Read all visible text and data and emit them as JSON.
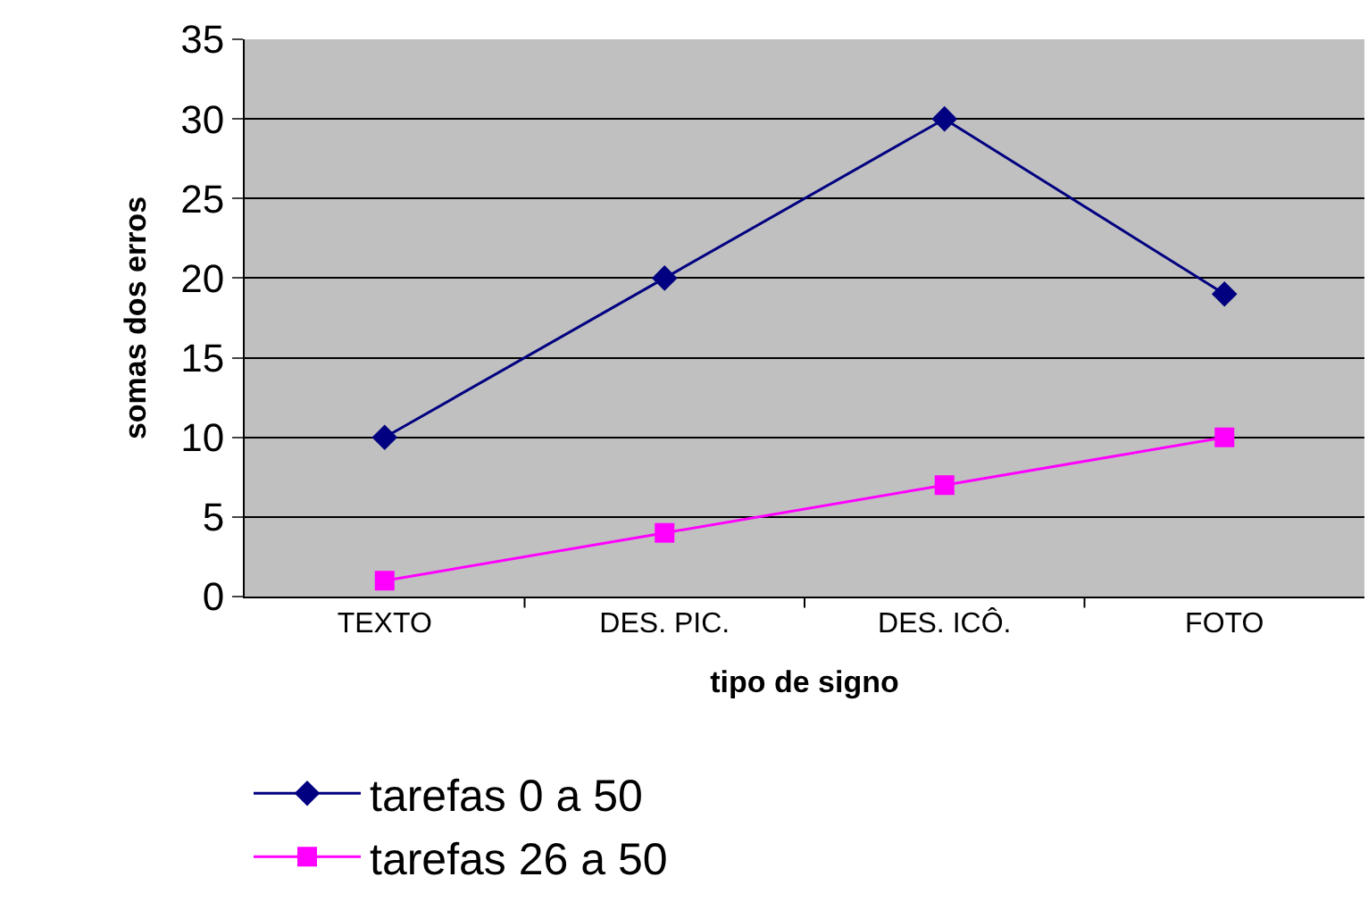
{
  "chart_data": {
    "type": "line",
    "xlabel": "tipo de signo",
    "ylabel": "somas dos erros",
    "categories": [
      "TEXTO",
      "DES. PIC.",
      "DES. ICÔ.",
      "FOTO"
    ],
    "series": [
      {
        "name": "tarefas 0 a 50",
        "color": "#000080",
        "values": [
          10,
          20,
          30,
          19
        ],
        "marker": "diamond"
      },
      {
        "name": "tarefas 26 a 50",
        "color": "#ff00ff",
        "values": [
          1,
          4,
          7,
          10
        ],
        "marker": "square"
      }
    ],
    "ylim": [
      0,
      35
    ],
    "yticks": [
      0,
      5,
      10,
      15,
      20,
      25,
      30,
      35
    ],
    "grid": "y",
    "legend": "bottom",
    "line_style": "solid"
  }
}
